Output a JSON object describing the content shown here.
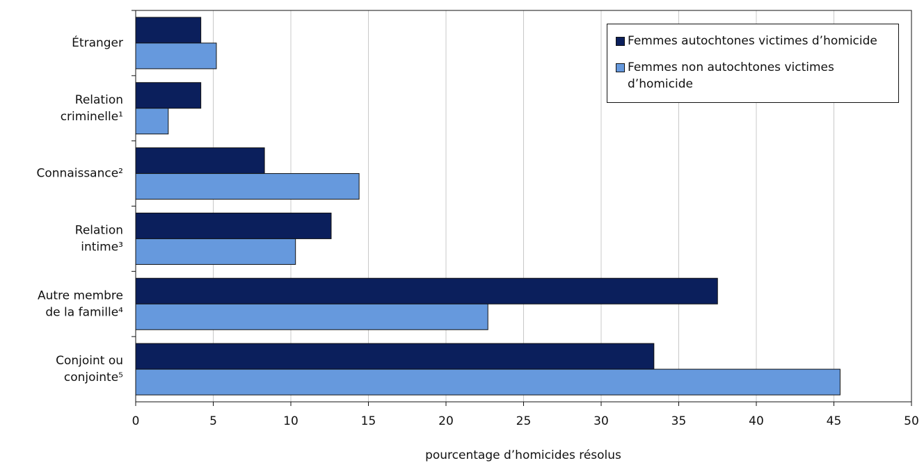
{
  "chart_data": {
    "type": "bar",
    "orientation": "horizontal",
    "xlabel": "pourcentage d’homicides résolus",
    "categories": [
      [
        "Étranger"
      ],
      [
        "Relation",
        "criminelle¹"
      ],
      [
        "Connaissance²"
      ],
      [
        "Relation",
        "intime³"
      ],
      [
        "Autre membre",
        "de la famille⁴"
      ],
      [
        "Conjoint ou",
        "conjointe⁵"
      ]
    ],
    "series": [
      {
        "name": "Femmes autochtones victimes d’homicide",
        "color": "#0b1f5c",
        "values": [
          4.2,
          4.2,
          8.3,
          12.6,
          37.5,
          33.4
        ]
      },
      {
        "name": "Femmes non autochtones victimes d’homicide",
        "color": "#6699dd",
        "values": [
          5.2,
          2.1,
          14.4,
          10.3,
          22.7,
          45.4
        ]
      }
    ],
    "xlim": [
      0,
      50
    ],
    "xticks": [
      0,
      5,
      10,
      15,
      20,
      25,
      30,
      35,
      40,
      45,
      50
    ],
    "grid": true,
    "legend": "upper right"
  }
}
